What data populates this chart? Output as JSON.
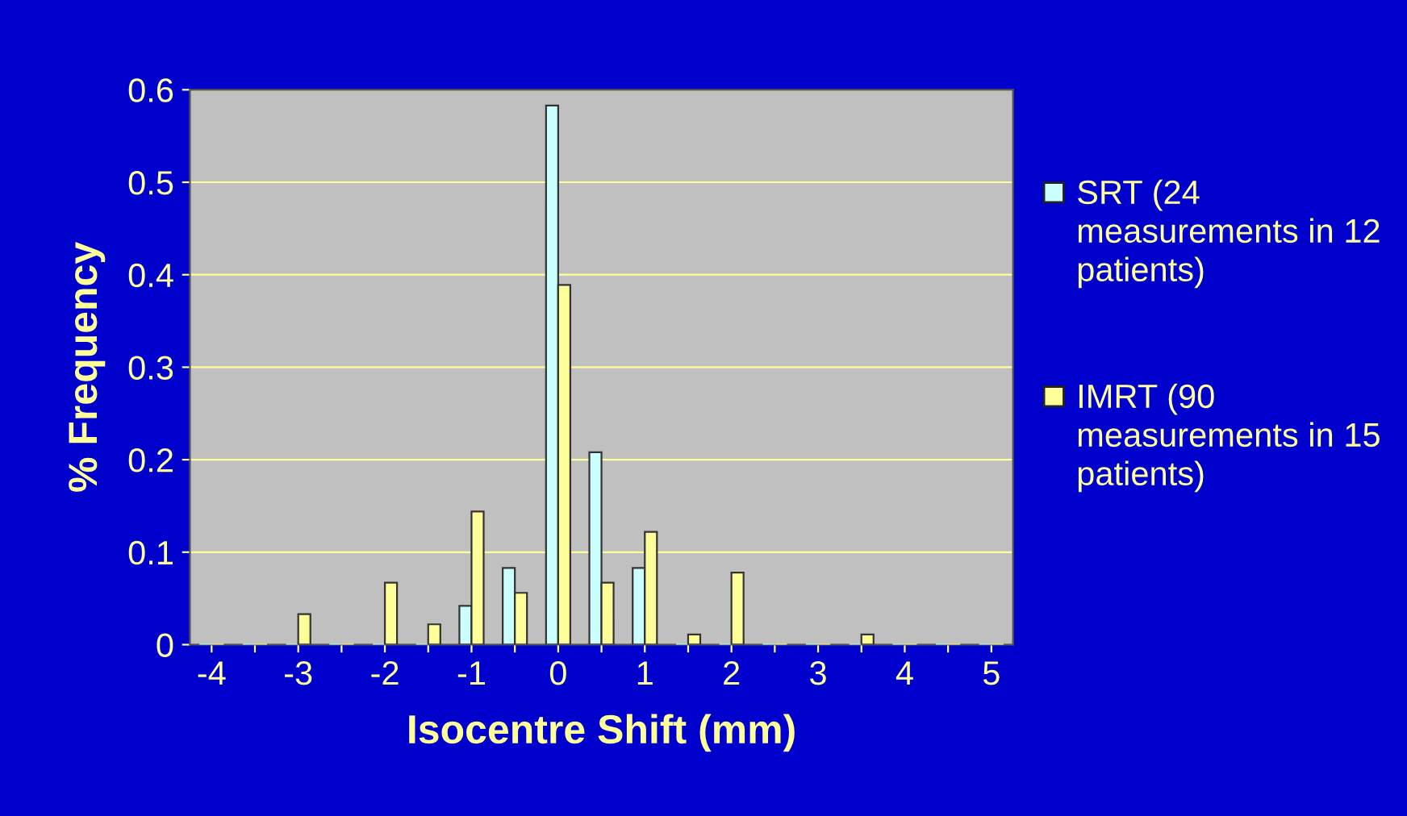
{
  "chart_data": {
    "type": "bar",
    "xlabel": "Isocentre Shift (mm)",
    "ylabel": "% Frequency",
    "categories": [
      "-4",
      null,
      "-3",
      null,
      "-2",
      null,
      "-1",
      null,
      "0",
      null,
      "1",
      null,
      "2",
      null,
      "3",
      null,
      "4",
      null,
      "5"
    ],
    "series": [
      {
        "name": "SRT (24 measurements in 12 patients)",
        "color": "#ccffff",
        "values": [
          0,
          0,
          0,
          0,
          0,
          0,
          0.042,
          0.083,
          0.583,
          0.208,
          0.083,
          0,
          0,
          0,
          0,
          0,
          0,
          0,
          0
        ]
      },
      {
        "name": "IMRT (90 measurements in 15 patients)",
        "color": "#ffff99",
        "values": [
          0,
          0,
          0.033,
          0,
          0.067,
          0.022,
          0.144,
          0.056,
          0.389,
          0.067,
          0.122,
          0.011,
          0.078,
          0,
          0,
          0.011,
          0,
          0,
          0
        ]
      }
    ],
    "ylim": [
      0,
      0.6
    ],
    "yticks": [
      0,
      0.1,
      0.2,
      0.3,
      0.4,
      0.5,
      0.6
    ],
    "grid": "y",
    "legend": "right"
  }
}
